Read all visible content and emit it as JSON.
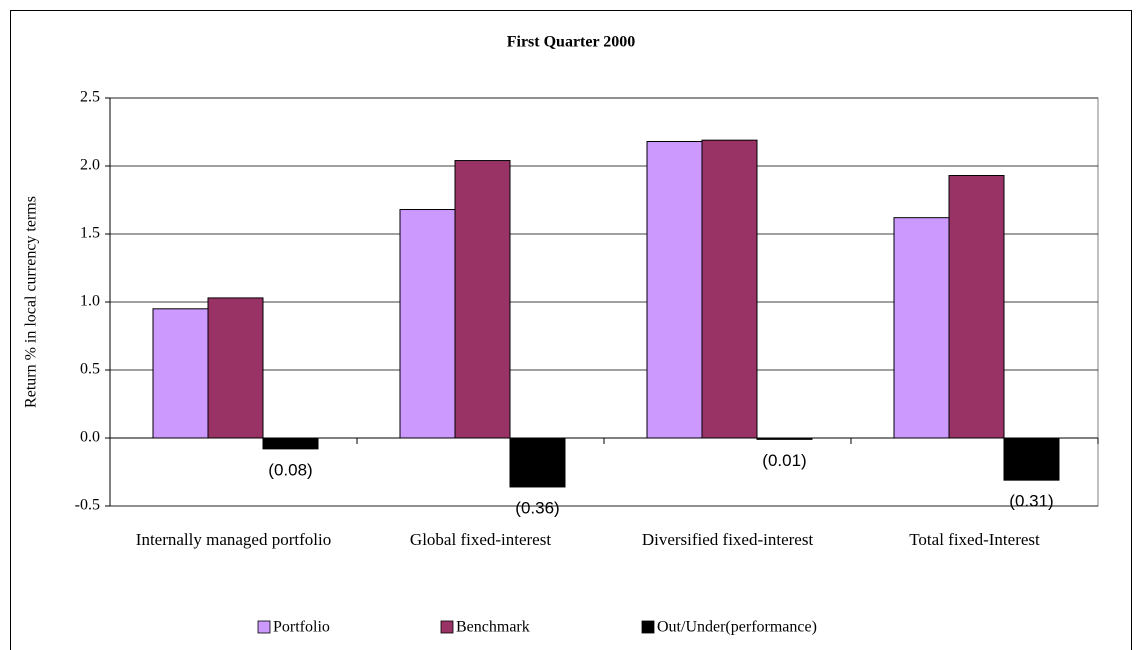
{
  "chart_data": {
    "type": "bar",
    "title": "First Quarter 2000",
    "y_label": "Return % in local currency terms",
    "categories": [
      "Internally managed portfolio",
      "Global fixed-interest",
      "Diversified fixed-interest",
      "Total fixed-Interest"
    ],
    "series": [
      {
        "name": "Portfolio",
        "color": "#cc99ff",
        "values": [
          0.95,
          1.68,
          2.18,
          1.62
        ]
      },
      {
        "name": "Benchmark",
        "color": "#993366",
        "values": [
          1.03,
          2.04,
          2.19,
          1.93
        ]
      },
      {
        "name": "Out/Under(performance)",
        "color": "#000000",
        "values": [
          -0.08,
          -0.36,
          -0.01,
          -0.31
        ],
        "value_labels": [
          "(0.08)",
          "(0.36)",
          "(0.01)",
          "(0.31)"
        ]
      }
    ],
    "ylim": [
      -0.5,
      2.5
    ],
    "yticks": [
      -0.5,
      {
        "value": 0,
        "label": "0.0"
      },
      0.5,
      {
        "value": 1,
        "label": "1.0"
      },
      1.5,
      {
        "value": 2,
        "label": "2.0"
      },
      2.5
    ],
    "grid": true,
    "legend": "bottom"
  }
}
